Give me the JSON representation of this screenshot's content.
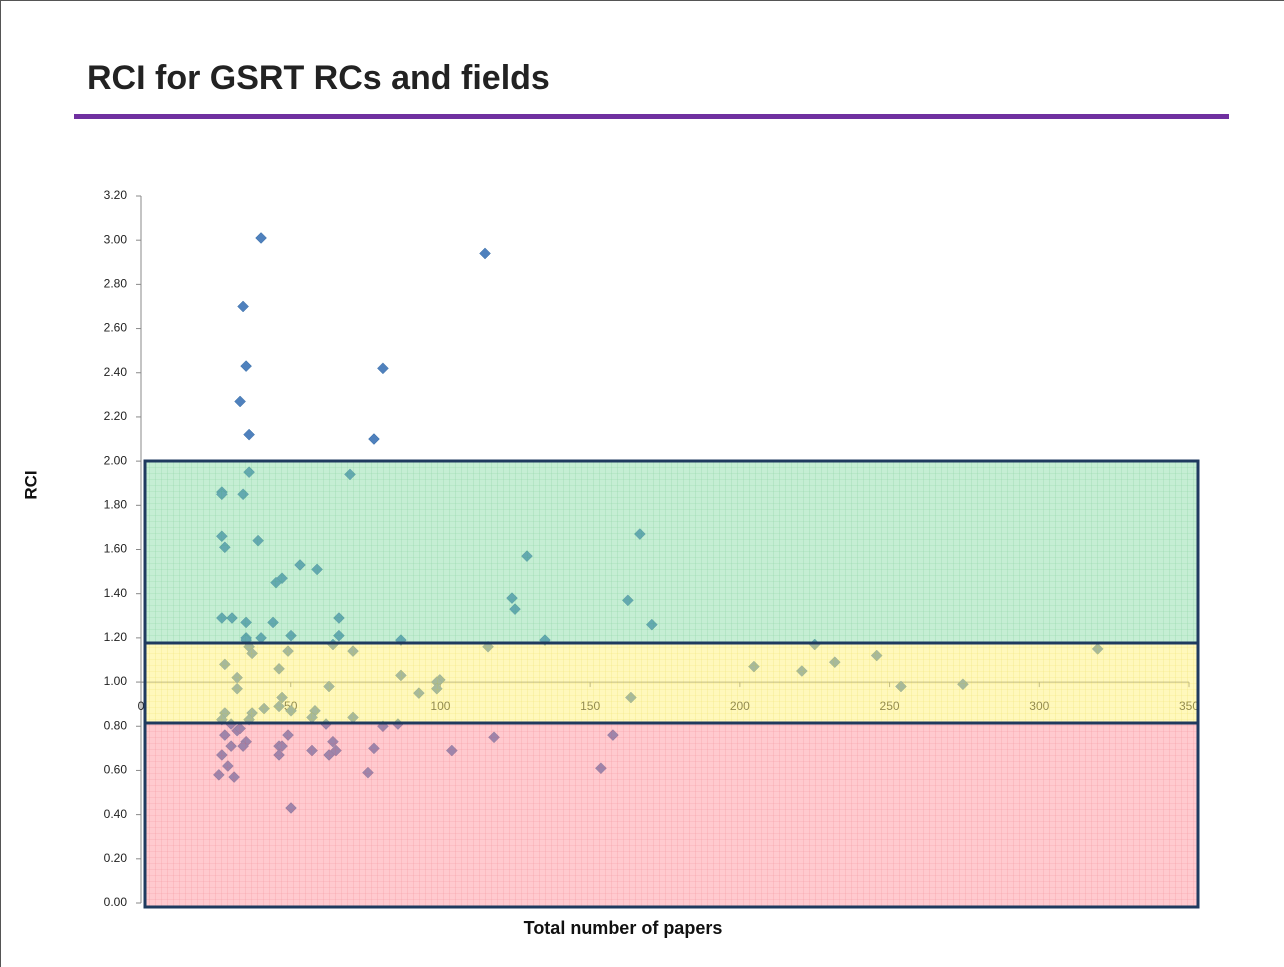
{
  "chart_data": {
    "type": "scatter",
    "title": "RCI for GSRT RCs and fields",
    "xlabel": "Total number of papers",
    "ylabel": "RCI",
    "color": "#4f81bd",
    "xlim": [
      0,
      350
    ],
    "ylim": [
      0,
      3.2
    ],
    "x_axis_crosses": 1,
    "xticks": [
      0,
      50,
      100,
      150,
      200,
      250,
      300,
      350
    ],
    "yticks": [
      {
        "value": 0,
        "label": "0.00"
      },
      {
        "value": 0.2,
        "label": "0.20"
      },
      {
        "value": 0.4,
        "label": "0.40"
      },
      {
        "value": 0.6,
        "label": "0.60"
      },
      {
        "value": 0.8,
        "label": "0.80"
      },
      {
        "value": 1,
        "label": "1.00"
      },
      {
        "value": 1.2,
        "label": "1.20"
      },
      {
        "value": 1.4,
        "label": "1.40"
      },
      {
        "value": 1.6,
        "label": "1.60"
      },
      {
        "value": 1.8,
        "label": "1.80"
      },
      {
        "value": 2,
        "label": "2.00"
      },
      {
        "value": 2.2,
        "label": "2.20"
      },
      {
        "value": 2.4,
        "label": "2.40"
      },
      {
        "value": 2.6,
        "label": "2.60"
      },
      {
        "value": 2.8,
        "label": "2.80"
      },
      {
        "value": 3,
        "label": "3.00"
      },
      {
        "value": 3.2,
        "label": "3.20"
      }
    ],
    "x": [
      40.1,
      114.9,
      34.1,
      35.1,
      80.8,
      33.1,
      36.1,
      77.8,
      69.8,
      36.1,
      27,
      27,
      34.1,
      27,
      166.6,
      28,
      39.1,
      53.1,
      58.8,
      128.9,
      47.1,
      45.1,
      162.6,
      123.9,
      124.9,
      66.1,
      170.6,
      27,
      30.4,
      35.1,
      44.1,
      66.1,
      50.1,
      35.1,
      40.1,
      35.1,
      134.9,
      86.8,
      36.1,
      115.9,
      64.1,
      225,
      319.5,
      37.1,
      70.8,
      49.1,
      245.7,
      231.7,
      28,
      204.7,
      46.1,
      220.7,
      86.8,
      32.1,
      99.8,
      98.8,
      62.8,
      98.8,
      253.8,
      274.5,
      32.1,
      92.8,
      163.6,
      47.1,
      46.1,
      41.1,
      50.1,
      58.1,
      37.1,
      28,
      57.1,
      70.8,
      27,
      36.1,
      61.8,
      30.1,
      80.8,
      85.8,
      32.1,
      33.1,
      28,
      49.1,
      117.9,
      157.6,
      64.1,
      35.1,
      30.1,
      34.1,
      46.1,
      47.1,
      77.8,
      103.8,
      57.1,
      65.1,
      27,
      46.1,
      62.8,
      29,
      153.6,
      75.8,
      26,
      31.1,
      50.1
    ],
    "values": [
      3.01,
      2.94,
      2.7,
      2.43,
      2.42,
      2.27,
      2.12,
      2.1,
      1.94,
      1.95,
      1.86,
      1.85,
      1.85,
      1.66,
      1.67,
      1.61,
      1.64,
      1.53,
      1.51,
      1.57,
      1.47,
      1.45,
      1.37,
      1.38,
      1.33,
      1.29,
      1.26,
      1.29,
      1.29,
      1.27,
      1.27,
      1.21,
      1.21,
      1.2,
      1.2,
      1.19,
      1.19,
      1.19,
      1.16,
      1.16,
      1.17,
      1.17,
      1.15,
      1.13,
      1.14,
      1.14,
      1.12,
      1.09,
      1.08,
      1.07,
      1.06,
      1.05,
      1.03,
      1.02,
      1.01,
      1.0,
      0.98,
      0.97,
      0.98,
      0.99,
      0.97,
      0.95,
      0.93,
      0.93,
      0.89,
      0.88,
      0.87,
      0.87,
      0.86,
      0.86,
      0.84,
      0.84,
      0.83,
      0.83,
      0.81,
      0.81,
      0.8,
      0.81,
      0.78,
      0.79,
      0.76,
      0.76,
      0.75,
      0.76,
      0.73,
      0.73,
      0.71,
      0.71,
      0.71,
      0.71,
      0.7,
      0.69,
      0.69,
      0.69,
      0.67,
      0.67,
      0.67,
      0.62,
      0.61,
      0.59,
      0.58,
      0.57,
      0.43
    ]
  }
}
